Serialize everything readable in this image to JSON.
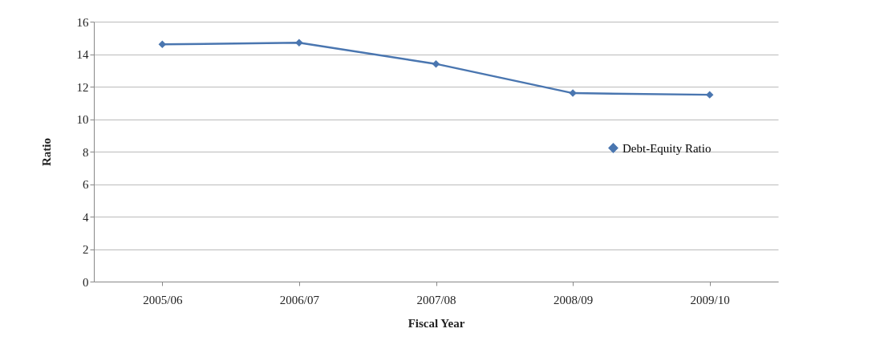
{
  "chart_data": {
    "type": "line",
    "xlabel": "Fiscal Year",
    "ylabel": "Ratio",
    "categories": [
      "2005/06",
      "2006/07",
      "2007/08",
      "2008/09",
      "2009/10"
    ],
    "series": [
      {
        "name": "Debt-Equity Ratio",
        "color": "#4a76b0",
        "values": [
          14.6,
          14.7,
          13.4,
          11.6,
          11.5
        ]
      }
    ],
    "ylim": [
      0,
      16
    ],
    "yticks": [
      0,
      2,
      4,
      6,
      8,
      10,
      12,
      14,
      16
    ],
    "grid": "y",
    "legend": "right",
    "marker": "diamond",
    "line_style": "solid"
  }
}
